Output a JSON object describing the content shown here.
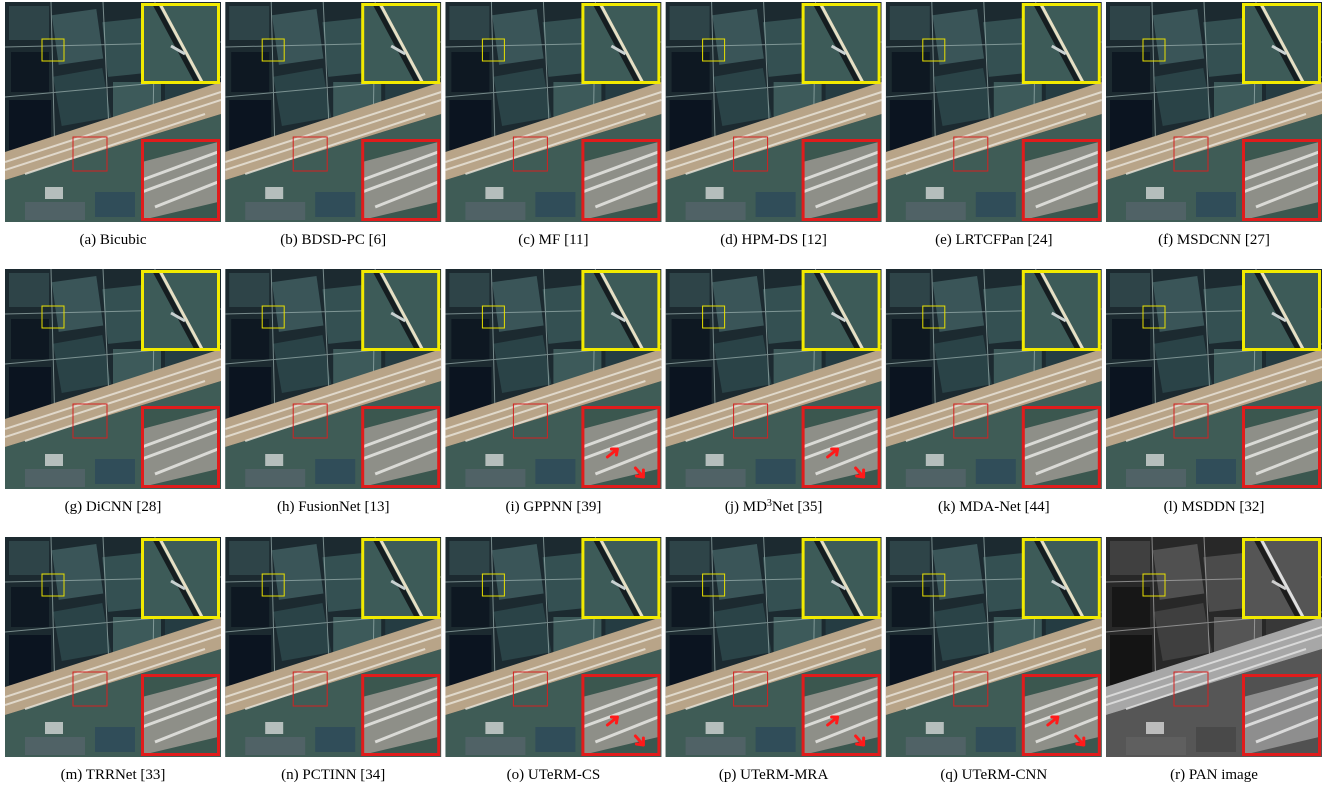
{
  "figure": {
    "panels": [
      {
        "caption": [
          "(a) Bicubic"
        ]
      },
      {
        "caption": [
          "(b) BDSD-PC [6]"
        ]
      },
      {
        "caption": [
          "(c) MF [11]"
        ]
      },
      {
        "caption": [
          "(d) HPM-DS [12]"
        ]
      },
      {
        "caption": [
          "(e) LRTCFPan [24]"
        ]
      },
      {
        "caption": [
          "(f) MSDCNN [27]"
        ]
      },
      {
        "caption": [
          "(g) DiCNN [28]"
        ]
      },
      {
        "caption": [
          "(h) FusionNet [13]"
        ]
      },
      {
        "caption": [
          "(i) GPPNN [39]"
        ],
        "arrows": true
      },
      {
        "caption": [
          {
            "text": "(j) MD"
          },
          {
            "text": "3",
            "sup": true
          },
          {
            "text": "Net [35]"
          }
        ],
        "arrows": true
      },
      {
        "caption": [
          "(k) MDA-Net [44]"
        ]
      },
      {
        "caption": [
          "(l) MSDDN [32]"
        ]
      },
      {
        "caption": [
          "(m) TRRNet [33]"
        ]
      },
      {
        "caption": [
          "(n) PCTINN [34]"
        ]
      },
      {
        "caption": [
          "(o) UTeRM-CS"
        ],
        "arrows": true
      },
      {
        "caption": [
          "(p) UTeRM-MRA"
        ],
        "arrows": true
      },
      {
        "caption": [
          "(q) UTeRM-CNN"
        ],
        "arrows": true
      },
      {
        "caption": [
          "(r) PAN image"
        ],
        "grayscale": true
      }
    ]
  }
}
